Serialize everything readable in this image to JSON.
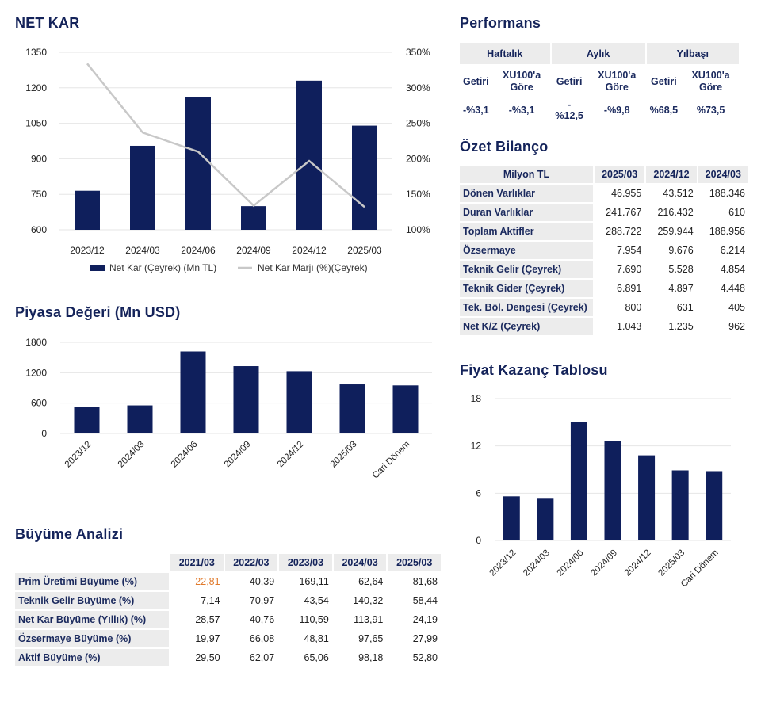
{
  "net_kar": {
    "title": "NET KAR",
    "legend_bar": "Net Kar (Çeyrek) (Mn TL)",
    "legend_line": "Net Kar Marjı (%)(Çeyrek)"
  },
  "piyasa": {
    "title": "Piyasa Değeri (Mn USD)"
  },
  "fk": {
    "title": "Fiyat Kazanç Tablosu"
  },
  "performans": {
    "title": "Performans",
    "groups": [
      "Haftalık",
      "Aylık",
      "Yılbaşı"
    ],
    "sub": [
      "Getiri",
      "XU100'a Göre",
      "Getiri",
      "XU100'a Göre",
      "Getiri",
      "XU100'a Göre"
    ],
    "values": [
      "-%3,1",
      "-%3,1",
      "-%12,5",
      "-%9,8",
      "%68,5",
      "%73,5"
    ]
  },
  "bilanco": {
    "title": "Özet Bilanço",
    "header": [
      "Milyon TL",
      "2025/03",
      "2024/12",
      "2024/03"
    ],
    "rows": [
      {
        "label": "Dönen Varlıklar",
        "v": [
          "46.955",
          "43.512",
          "188.346"
        ]
      },
      {
        "label": "Duran Varlıklar",
        "v": [
          "241.767",
          "216.432",
          "610"
        ]
      },
      {
        "label": "Toplam Aktifler",
        "v": [
          "288.722",
          "259.944",
          "188.956"
        ]
      },
      {
        "label": "Özsermaye",
        "v": [
          "7.954",
          "9.676",
          "6.214"
        ]
      },
      {
        "label": "Teknik Gelir (Çeyrek)",
        "v": [
          "7.690",
          "5.528",
          "4.854"
        ]
      },
      {
        "label": "Teknik Gider (Çeyrek)",
        "v": [
          "6.891",
          "4.897",
          "4.448"
        ]
      },
      {
        "label": "Tek. Böl. Dengesi (Çeyrek)",
        "v": [
          "800",
          "631",
          "405"
        ]
      },
      {
        "label": "Net K/Z (Çeyrek)",
        "v": [
          "1.043",
          "1.235",
          "962"
        ]
      }
    ]
  },
  "buyume": {
    "title": "Büyüme Analizi",
    "header": [
      "",
      "2021/03",
      "2022/03",
      "2023/03",
      "2024/03",
      "2025/03"
    ],
    "rows": [
      {
        "label": "Prim Üretimi Büyüme (%)",
        "v": [
          "-22,81",
          "40,39",
          "169,11",
          "62,64",
          "81,68"
        ]
      },
      {
        "label": "Teknik Gelir Büyüme (%)",
        "v": [
          "7,14",
          "70,97",
          "43,54",
          "140,32",
          "58,44"
        ]
      },
      {
        "label": "Net Kar Büyüme (Yıllık) (%)",
        "v": [
          "28,57",
          "40,76",
          "110,59",
          "113,91",
          "24,19"
        ]
      },
      {
        "label": "Özsermaye Büyüme (%)",
        "v": [
          "19,97",
          "66,08",
          "48,81",
          "97,65",
          "27,99"
        ]
      },
      {
        "label": "Aktif Büyüme (%)",
        "v": [
          "29,50",
          "62,07",
          "65,06",
          "98,18",
          "52,80"
        ]
      }
    ]
  },
  "chart_data": [
    {
      "type": "bar",
      "categories": [
        "2023/12",
        "2024/03",
        "2024/06",
        "2024/09",
        "2024/12",
        "2025/03"
      ],
      "series": [
        {
          "name": "Net Kar (Çeyrek) (Mn TL)",
          "type": "bar",
          "axis": "left",
          "color": "#0f1f5c",
          "values": [
            765,
            955,
            1160,
            700,
            1230,
            1040
          ]
        },
        {
          "name": "Net Kar Marjı (%)(Çeyrek)",
          "type": "line",
          "axis": "right",
          "color": "#c8c8c8",
          "values": [
            334,
            237,
            210,
            134,
            197,
            132
          ]
        }
      ],
      "ylim": [
        600,
        1350
      ],
      "yticks": [
        600,
        750,
        900,
        1050,
        1200,
        1350
      ],
      "y2lim": [
        100,
        350
      ],
      "y2ticks": [
        "100%",
        "150%",
        "200%",
        "250%",
        "300%",
        "350%"
      ],
      "legend": "bottom",
      "grid": true
    },
    {
      "type": "bar",
      "categories": [
        "2023/12",
        "2024/03",
        "2024/06",
        "2024/09",
        "2024/12",
        "2025/03",
        "Cari Dönem"
      ],
      "series": [
        {
          "color": "#0f1f5c",
          "values": [
            530,
            555,
            1620,
            1330,
            1230,
            970,
            950
          ]
        }
      ],
      "ylim": [
        0,
        1800
      ],
      "yticks": [
        0,
        600,
        1200,
        1800
      ],
      "grid": true
    },
    {
      "type": "bar",
      "categories": [
        "2023/12",
        "2024/03",
        "2024/06",
        "2024/09",
        "2024/12",
        "2025/03",
        "Cari Dönem"
      ],
      "series": [
        {
          "color": "#0f1f5c",
          "values": [
            5.6,
            5.3,
            15.0,
            12.6,
            10.8,
            8.9,
            8.8
          ]
        }
      ],
      "ylim": [
        0,
        18
      ],
      "yticks": [
        0,
        6,
        12,
        18
      ],
      "grid": true
    }
  ]
}
